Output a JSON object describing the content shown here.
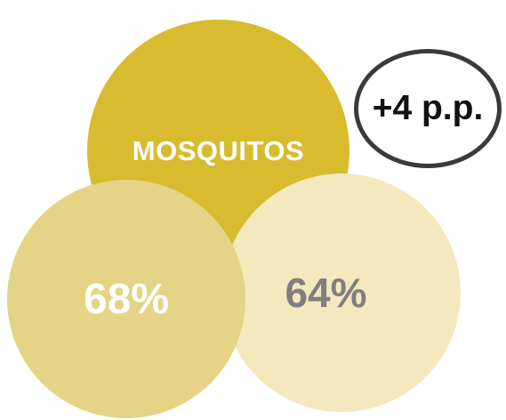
{
  "diagram": {
    "top_circle": {
      "label": "MOSQUITOS",
      "color": "#d8bb2e"
    },
    "left_circle": {
      "value": "68%",
      "color": "#e5d486"
    },
    "right_circle": {
      "value": "64%",
      "color": "#f4e8be"
    },
    "difference_badge": {
      "value": "+4 p.p."
    }
  }
}
